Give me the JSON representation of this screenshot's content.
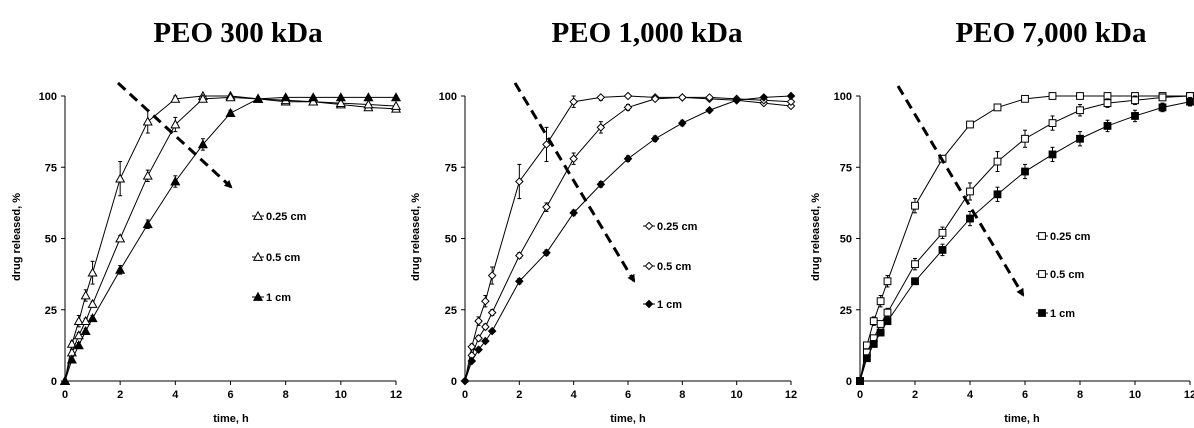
{
  "chart_data": [
    {
      "type": "line",
      "title": "PEO 300 kDa",
      "xlabel": "time, h",
      "ylabel": "drug released, %",
      "xlim": [
        0,
        12
      ],
      "ylim": [
        0,
        100
      ],
      "xticks": [
        0,
        2,
        4,
        6,
        8,
        10,
        12
      ],
      "yticks": [
        0,
        25,
        50,
        75,
        100
      ],
      "grid": false,
      "legend_position": "right",
      "annotation": "dashed arrow pointing down-right across the curves",
      "series": [
        {
          "name": "0.25 cm",
          "marker": "triangle-open",
          "x": [
            0,
            0.25,
            0.5,
            0.75,
            1,
            2,
            3,
            4,
            5,
            6,
            7,
            8,
            9,
            10,
            11,
            12
          ],
          "y": [
            0,
            13,
            21,
            30,
            38,
            71,
            91,
            99,
            100,
            100,
            99,
            98,
            98,
            97,
            96,
            95.5
          ],
          "err": [
            0,
            1,
            2,
            2,
            4,
            6,
            4,
            1,
            1,
            0.5,
            0.5,
            0.5,
            0.5,
            0.5,
            0.5,
            0.5
          ]
        },
        {
          "name": "0.5 cm",
          "marker": "triangle-open",
          "x": [
            0,
            0.25,
            0.5,
            0.75,
            1,
            2,
            3,
            4,
            5,
            6,
            7,
            8,
            9,
            10,
            11,
            12
          ],
          "y": [
            0,
            10,
            16,
            21,
            27,
            50,
            72,
            90,
            99,
            99.5,
            99,
            98.5,
            98,
            97.5,
            97,
            96.5
          ],
          "err": [
            0,
            1,
            1,
            1,
            1,
            1,
            2,
            2.5,
            1,
            0.5,
            0.5,
            0.5,
            0.5,
            0.5,
            0.5,
            0.5
          ]
        },
        {
          "name": "1 cm",
          "marker": "triangle-filled",
          "x": [
            0,
            0.25,
            0.5,
            0.75,
            1,
            2,
            3,
            4,
            5,
            6,
            7,
            8,
            9,
            10,
            11,
            12
          ],
          "y": [
            0,
            7.5,
            12.5,
            17.5,
            22,
            39,
            55,
            70,
            83,
            94,
            99,
            99.5,
            99.5,
            99.5,
            99.5,
            99.5
          ],
          "err": [
            0,
            0.5,
            1,
            1,
            1,
            1.5,
            1.5,
            2,
            2,
            1,
            0.5,
            0.5,
            0.5,
            0.5,
            0.5,
            0.5
          ]
        }
      ]
    },
    {
      "type": "line",
      "title": "PEO 1,000 kDa",
      "xlabel": "time, h",
      "ylabel": "drug released, %",
      "xlim": [
        0,
        12
      ],
      "ylim": [
        0,
        100
      ],
      "xticks": [
        0,
        2,
        4,
        6,
        8,
        10,
        12
      ],
      "yticks": [
        0,
        25,
        50,
        75,
        100
      ],
      "grid": false,
      "legend_position": "right",
      "annotation": "dashed arrow pointing down-right across the curves",
      "series": [
        {
          "name": "0.25 cm",
          "marker": "diamond-open",
          "x": [
            0,
            0.25,
            0.5,
            0.75,
            1,
            2,
            3,
            4,
            5,
            6,
            7,
            8,
            9,
            10,
            11,
            12
          ],
          "y": [
            0,
            12,
            21,
            28,
            37,
            70,
            83,
            98,
            99.5,
            100,
            99.5,
            99.5,
            99,
            98.5,
            97.5,
            96.5
          ],
          "err": [
            0,
            1,
            1.5,
            2,
            3,
            6,
            6,
            2,
            1,
            0.5,
            0.5,
            0.5,
            0.5,
            0.5,
            0.5,
            0.5
          ]
        },
        {
          "name": "0.5 cm",
          "marker": "diamond-open",
          "x": [
            0,
            0.25,
            0.5,
            0.75,
            1,
            2,
            3,
            4,
            5,
            6,
            7,
            8,
            9,
            10,
            11,
            12
          ],
          "y": [
            0,
            9,
            15,
            19,
            24,
            44,
            61,
            78,
            89,
            96,
            99,
            99.5,
            99.5,
            99,
            98.5,
            98
          ],
          "err": [
            0,
            1,
            1,
            1,
            1,
            1,
            1.5,
            2,
            2,
            1,
            0.5,
            0.5,
            0.5,
            0.5,
            0.5,
            0.5
          ]
        },
        {
          "name": "1 cm",
          "marker": "diamond-filled",
          "x": [
            0,
            0.25,
            0.5,
            0.75,
            1,
            2,
            3,
            4,
            5,
            6,
            7,
            8,
            9,
            10,
            11,
            12
          ],
          "y": [
            0,
            7,
            11,
            14,
            17.5,
            35,
            45,
            59,
            69,
            78,
            85,
            90.5,
            95,
            98.5,
            99.5,
            100
          ],
          "err": [
            0,
            0.5,
            0.5,
            0.5,
            0.5,
            1,
            1,
            1,
            1,
            1,
            1,
            1,
            0.5,
            0.5,
            0.5,
            0.5
          ]
        }
      ]
    },
    {
      "type": "line",
      "title": "PEO 7,000 kDa",
      "xlabel": "time, h",
      "ylabel": "drug released, %",
      "xlim": [
        0,
        12
      ],
      "ylim": [
        0,
        100
      ],
      "xticks": [
        0,
        2,
        4,
        6,
        8,
        10,
        12
      ],
      "yticks": [
        0,
        25,
        50,
        75,
        100
      ],
      "grid": false,
      "legend_position": "right",
      "annotation": "dashed arrow pointing down-right across the curves",
      "series": [
        {
          "name": "0.25 cm",
          "marker": "square-open",
          "x": [
            0,
            0.25,
            0.5,
            0.75,
            1,
            2,
            3,
            4,
            5,
            6,
            7,
            8,
            9,
            10,
            11,
            12
          ],
          "y": [
            0,
            12.5,
            21,
            28,
            35,
            61.5,
            78,
            90,
            96,
            99,
            100,
            100,
            100,
            100,
            100,
            100
          ],
          "err": [
            0,
            1,
            1.5,
            2,
            2,
            2.5,
            1,
            1,
            0.5,
            0.5,
            0.5,
            0.5,
            0.5,
            0.5,
            0.5,
            0.5
          ]
        },
        {
          "name": "0.5 cm",
          "marker": "square-open",
          "x": [
            0,
            0.25,
            0.5,
            0.75,
            1,
            2,
            3,
            4,
            5,
            6,
            7,
            8,
            9,
            10,
            11,
            12
          ],
          "y": [
            0,
            10,
            15,
            20,
            24,
            41,
            52,
            66.5,
            77,
            85,
            90.5,
            95,
            97.5,
            98.5,
            99.5,
            100
          ],
          "err": [
            0,
            1,
            1,
            1,
            1.5,
            2,
            2,
            3,
            3.5,
            3,
            2.5,
            2,
            1.5,
            1.5,
            1,
            1
          ]
        },
        {
          "name": "1 cm",
          "marker": "square-filled",
          "x": [
            0,
            0.25,
            0.5,
            0.75,
            1,
            2,
            3,
            4,
            5,
            6,
            7,
            8,
            9,
            10,
            11,
            12
          ],
          "y": [
            0,
            8,
            13,
            17,
            21,
            35,
            46,
            57,
            65.5,
            73.5,
            79.5,
            85,
            89.5,
            93,
            96,
            98
          ],
          "err": [
            0,
            0.5,
            1,
            1,
            1,
            1,
            2,
            2.5,
            2.5,
            2.5,
            2.5,
            2.5,
            2,
            2,
            1.5,
            1.5
          ]
        }
      ]
    }
  ]
}
